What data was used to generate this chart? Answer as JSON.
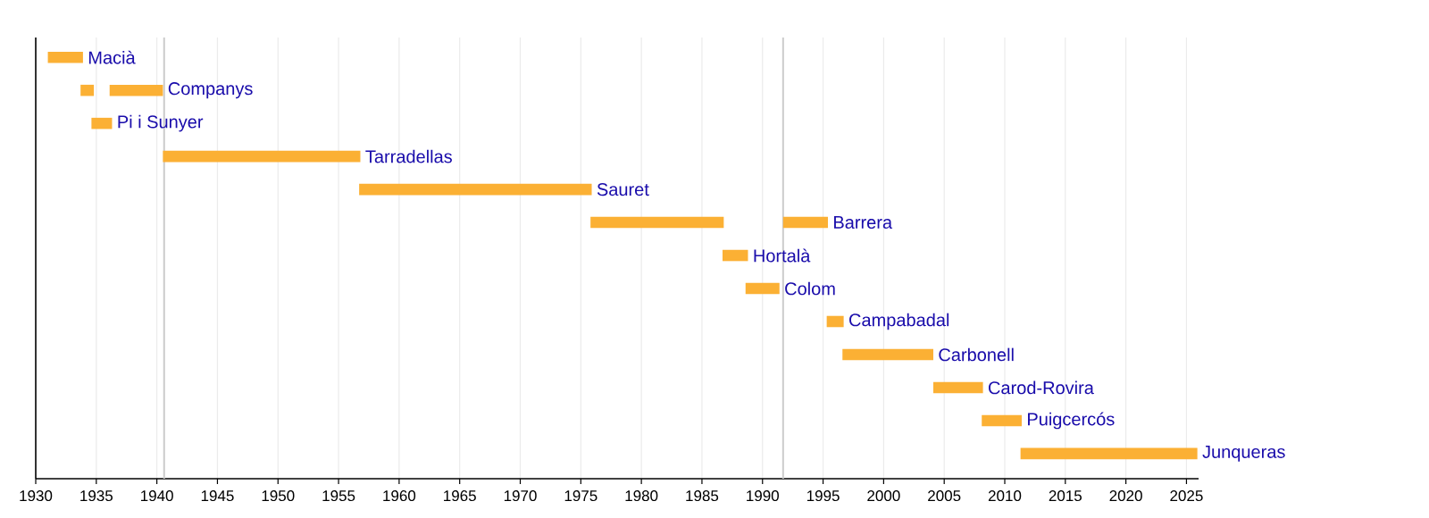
{
  "chart_data": {
    "type": "bar",
    "orientation": "horizontal",
    "categories": [
      "Macià",
      "Companys",
      "Pi i Sunyer",
      "Tarradellas",
      "Sauret",
      "Barrera",
      "Hortalà",
      "Colom",
      "Campabadal",
      "Carbonell",
      "Carod-Rovira",
      "Puigcercós",
      "Junqueras"
    ],
    "series": [
      {
        "color": "#fbb034",
        "base": [
          1931.0,
          1933.7,
          1934.6,
          1940.5,
          1956.7,
          1975.8,
          1986.7,
          1988.6,
          1995.3,
          1996.6,
          2004.1,
          2008.1,
          2011.3
        ],
        "values": [
          2.9,
          1.1,
          1.7,
          16.3,
          19.2,
          11.0,
          2.1,
          2.8,
          1.4,
          7.5,
          4.1,
          3.3,
          14.6
        ]
      },
      {
        "color": "#fbb034",
        "base": [
          null,
          1936.1,
          null,
          null,
          null,
          1991.7,
          null,
          null,
          null,
          null,
          null,
          null,
          null
        ],
        "values": [
          null,
          4.4,
          null,
          null,
          null,
          3.7,
          null,
          null,
          null,
          null,
          null,
          null,
          null
        ]
      }
    ],
    "xlim": [
      1930,
      2026
    ],
    "xticks": [
      1930,
      1935,
      1940,
      1945,
      1950,
      1955,
      1960,
      1965,
      1970,
      1975,
      1980,
      1985,
      1990,
      1995,
      2000,
      2005,
      2010,
      2015,
      2020,
      2025
    ],
    "ref_lines": [
      {
        "axis": "x",
        "value": 1940.6,
        "color": "#cccccc"
      },
      {
        "axis": "x",
        "value": 1991.7,
        "color": "#cccccc"
      }
    ],
    "grid": "x",
    "tick_labels": "x"
  }
}
